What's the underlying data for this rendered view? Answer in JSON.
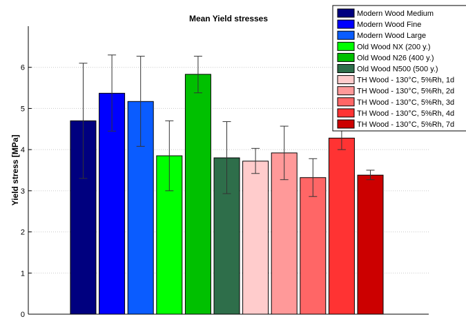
{
  "chart_data": {
    "type": "bar",
    "title": "Mean Yield stresses",
    "xlabel": "",
    "ylabel": "Yield stress [MPa]",
    "ylim": [
      0,
      7
    ],
    "yticks": [
      0,
      1,
      2,
      3,
      4,
      5,
      6
    ],
    "grid": true,
    "legend_position": "top-right",
    "series": [
      {
        "name": "Modern Wood Medium",
        "value": 4.7,
        "err_low": 3.3,
        "err_high": 6.1,
        "color": "#00007f"
      },
      {
        "name": "Modern Wood Fine",
        "value": 5.37,
        "err_low": 4.45,
        "err_high": 6.3,
        "color": "#0000ff"
      },
      {
        "name": "Modern Wood Large",
        "value": 5.17,
        "err_low": 4.08,
        "err_high": 6.27,
        "color": "#0a5cff"
      },
      {
        "name": "Old Wood NX (200 y.)",
        "value": 3.85,
        "err_low": 3.0,
        "err_high": 4.7,
        "color": "#00ff00"
      },
      {
        "name": "Old Wood N26 (400 y.)",
        "value": 5.83,
        "err_low": 5.38,
        "err_high": 6.27,
        "color": "#00c000"
      },
      {
        "name": "Old Wood N500 (500 y.)",
        "value": 3.8,
        "err_low": 2.93,
        "err_high": 4.68,
        "color": "#2e6e4a"
      },
      {
        "name": "TH Wood - 130°C, 5%Rh, 1d",
        "value": 3.72,
        "err_low": 3.42,
        "err_high": 4.03,
        "color": "#ffcccc"
      },
      {
        "name": "TH Wood - 130°C, 5%Rh, 2d",
        "value": 3.92,
        "err_low": 3.27,
        "err_high": 4.57,
        "color": "#ff9999"
      },
      {
        "name": "TH Wood - 130°C, 5%Rh, 3d",
        "value": 3.32,
        "err_low": 2.86,
        "err_high": 3.78,
        "color": "#ff6666"
      },
      {
        "name": "TH Wood - 130°C, 5%Rh, 4d",
        "value": 4.28,
        "err_low": 4.0,
        "err_high": 4.55,
        "color": "#ff3333"
      },
      {
        "name": "TH Wood - 130°C, 5%Rh, 7d",
        "value": 3.38,
        "err_low": 3.27,
        "err_high": 3.5,
        "color": "#cc0000"
      }
    ]
  }
}
